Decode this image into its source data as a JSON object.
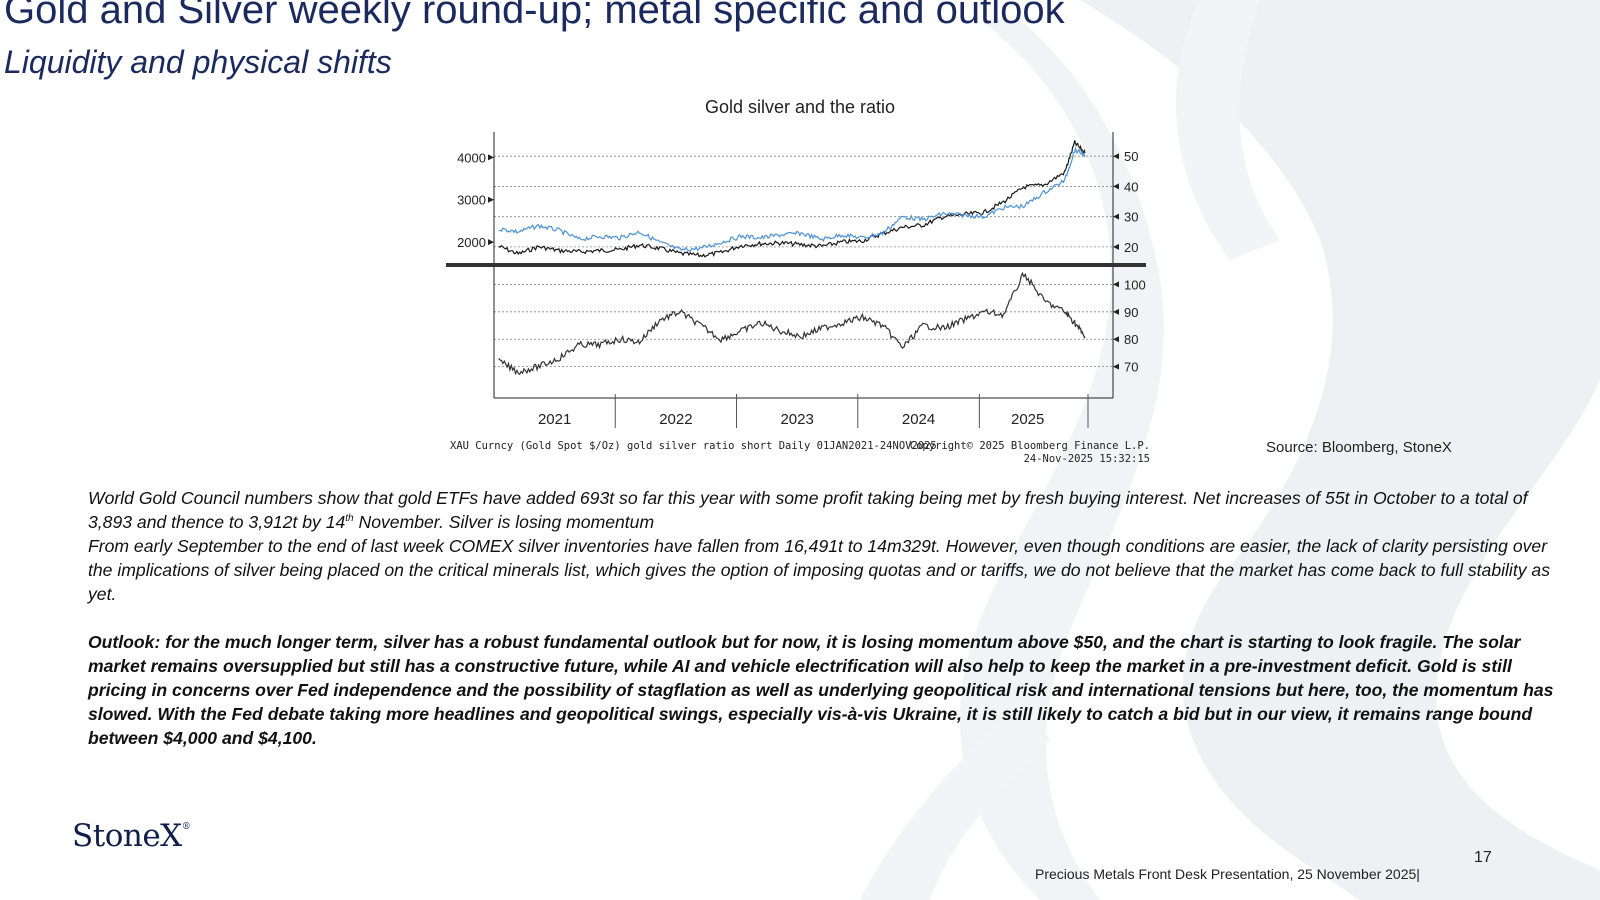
{
  "slide": {
    "title": "Gold and Silver weekly round-up; metal specific and outlook",
    "subtitle": "Liquidity and physical shifts",
    "chart_title": "Gold silver and the ratio",
    "source": "Source:  Bloomberg, StoneX",
    "para1_a": "World Gold Council numbers show that gold ETFs have added 693t so far this year with some profit taking being met by fresh buying interest.  Net increases of 55t in October to a total of 3,893 and thence to 3,912t by 14",
    "para1_sup": "th",
    "para1_b": " November.  Silver is losing momentum",
    "para2": "From early September to the end of last week COMEX silver inventories have fallen from 16,491t to 14m329t. However, even though conditions are easier, the lack of clarity persisting over the implications of silver being placed on the critical minerals list, which gives the option of imposing quotas and or tariffs, we do not believe that the market has come back to full stability as yet.",
    "para3": "Outlook:  for the much longer term, silver has a robust fundamental outlook but for now, it is losing momentum above $50, and the chart is starting to look fragile.  The solar market remains oversupplied but still has a constructive future, while AI and vehicle electrification will also help to keep the market in a pre-investment deficit.  Gold is still pricing in concerns over Fed independence and the possibility of stagflation as well as underlying geopolitical risk and international tensions but here, too, the momentum has slowed.  With the Fed debate taking more headlines and geopolitical swings, especially vis-à-vis Ukraine, it is still likely to catch a bid but in our view, it remains range bound between $4,000 and $4,100.",
    "logo_text": "StoneX",
    "logo_mark": "®",
    "page_number": "17",
    "footer": "Precious Metals Front Desk Presentation, 25 November 2025|"
  },
  "chart_data": {
    "type": "line",
    "title": "Gold silver and the ratio",
    "x_ticks": [
      "2021",
      "2022",
      "2023",
      "2024",
      "2025"
    ],
    "x_range": [
      "2021-01-01",
      "2025-11-24"
    ],
    "footer_left": "XAU Curncy (Gold Spot  $/Oz) gold silver ratio short Daily 01JAN2021-24NOV2025",
    "footer_right_1": "Copyright© 2025 Bloomberg Finance L.P.",
    "footer_right_2": "24-Nov-2025 15:32:15",
    "colors": {
      "gold": "#1a1a1a",
      "silver": "#4f93d6",
      "ratio": "#333333"
    },
    "panels": [
      {
        "name": "top",
        "left_axis": {
          "ticks": [
            2000,
            3000,
            4000
          ],
          "range": [
            1600,
            4600
          ]
        },
        "right_axis": {
          "ticks": [
            20,
            30,
            40,
            50
          ],
          "range": [
            16,
            58
          ]
        },
        "series": [
          {
            "key": "gold",
            "axis": "left",
            "x": [
              "2021-01",
              "2021-03",
              "2021-05",
              "2021-07",
              "2021-09",
              "2021-11",
              "2022-01",
              "2022-03",
              "2022-05",
              "2022-07",
              "2022-09",
              "2022-11",
              "2023-01",
              "2023-03",
              "2023-05",
              "2023-07",
              "2023-09",
              "2023-11",
              "2024-01",
              "2024-03",
              "2024-05",
              "2024-07",
              "2024-09",
              "2024-11",
              "2025-01",
              "2025-03",
              "2025-05",
              "2025-07",
              "2025-09",
              "2025-10",
              "2025-11"
            ],
            "y": [
              1900,
              1720,
              1890,
              1800,
              1770,
              1800,
              1820,
              1930,
              1850,
              1730,
              1680,
              1750,
              1920,
              1960,
              1980,
              1940,
              1900,
              2000,
              2030,
              2200,
              2350,
              2400,
              2600,
              2650,
              2700,
              2950,
              3300,
              3350,
              3650,
              4350,
              4100
            ]
          },
          {
            "key": "silver",
            "axis": "right",
            "x": [
              "2021-01",
              "2021-03",
              "2021-05",
              "2021-07",
              "2021-09",
              "2021-11",
              "2022-01",
              "2022-03",
              "2022-05",
              "2022-07",
              "2022-09",
              "2022-11",
              "2023-01",
              "2023-03",
              "2023-05",
              "2023-07",
              "2023-09",
              "2023-11",
              "2024-01",
              "2024-03",
              "2024-05",
              "2024-07",
              "2024-09",
              "2024-11",
              "2025-01",
              "2025-03",
              "2025-05",
              "2025-07",
              "2025-09",
              "2025-10",
              "2025-11"
            ],
            "y": [
              26,
              25,
              27,
              25.5,
              22.5,
              23.5,
              23,
              25,
              21.5,
              19,
              19.5,
              21.5,
              23.5,
              23,
              24,
              24.5,
              22.5,
              24,
              23,
              24.5,
              30,
              29,
              31,
              30.5,
              30,
              33,
              33.5,
              38,
              42,
              52,
              50.5
            ]
          }
        ]
      },
      {
        "name": "bottom",
        "right_axis": {
          "ticks": [
            70,
            80,
            90,
            100
          ],
          "range": [
            60,
            106
          ]
        },
        "series": [
          {
            "key": "ratio",
            "axis": "right",
            "x": [
              "2021-01",
              "2021-03",
              "2021-05",
              "2021-07",
              "2021-09",
              "2021-11",
              "2022-01",
              "2022-03",
              "2022-05",
              "2022-07",
              "2022-09",
              "2022-11",
              "2023-01",
              "2023-03",
              "2023-05",
              "2023-07",
              "2023-09",
              "2023-11",
              "2024-01",
              "2024-03",
              "2024-05",
              "2024-07",
              "2024-09",
              "2024-11",
              "2025-01",
              "2025-03",
              "2025-05",
              "2025-07",
              "2025-09",
              "2025-10",
              "2025-11"
            ],
            "y": [
              72,
              68,
              70,
              73,
              78,
              78,
              80,
              79,
              87,
              90,
              85,
              80,
              83,
              86,
              83,
              81,
              84,
              86,
              88,
              85,
              77,
              85,
              84,
              87,
              90,
              89,
              104,
              94,
              90,
              86,
              81
            ]
          }
        ]
      }
    ]
  }
}
